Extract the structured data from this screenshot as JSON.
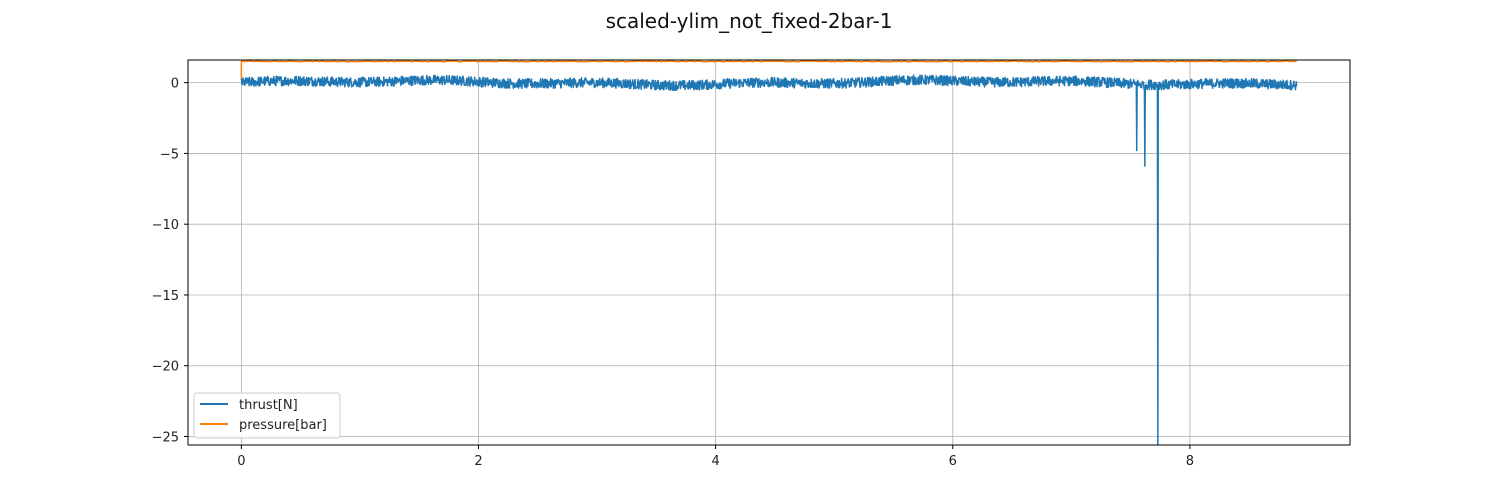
{
  "chart_data": {
    "type": "line",
    "title": "scaled-ylim_not_fixed-2bar-1",
    "xlabel": "",
    "ylabel": "",
    "xlim": [
      -0.45,
      9.35
    ],
    "ylim": [
      -25.6,
      1.6
    ],
    "xticks": [
      0,
      2,
      4,
      6,
      8
    ],
    "yticks": [
      0,
      -5,
      -10,
      -15,
      -20,
      -25
    ],
    "xtick_labels": [
      "0",
      "2",
      "4",
      "6",
      "8"
    ],
    "ytick_labels": [
      "0",
      "−5",
      "−10",
      "−15",
      "−20",
      "−25"
    ],
    "grid": true,
    "legend_position": "lower-left",
    "series": [
      {
        "name": "thrust[N]",
        "color": "#1f77b4",
        "x_range": [
          0.0,
          8.9
        ],
        "baseline": 0.0,
        "noise_amplitude": 0.35,
        "spikes": [
          {
            "x": 7.55,
            "y": -4.8
          },
          {
            "x": 7.62,
            "y": -5.9
          },
          {
            "x": 7.73,
            "y": -25.6
          }
        ]
      },
      {
        "name": "pressure[bar]",
        "color": "#ff7f0e",
        "x_range": [
          0.0,
          8.9
        ],
        "level": 1.5,
        "start_value": 0.2
      }
    ]
  }
}
